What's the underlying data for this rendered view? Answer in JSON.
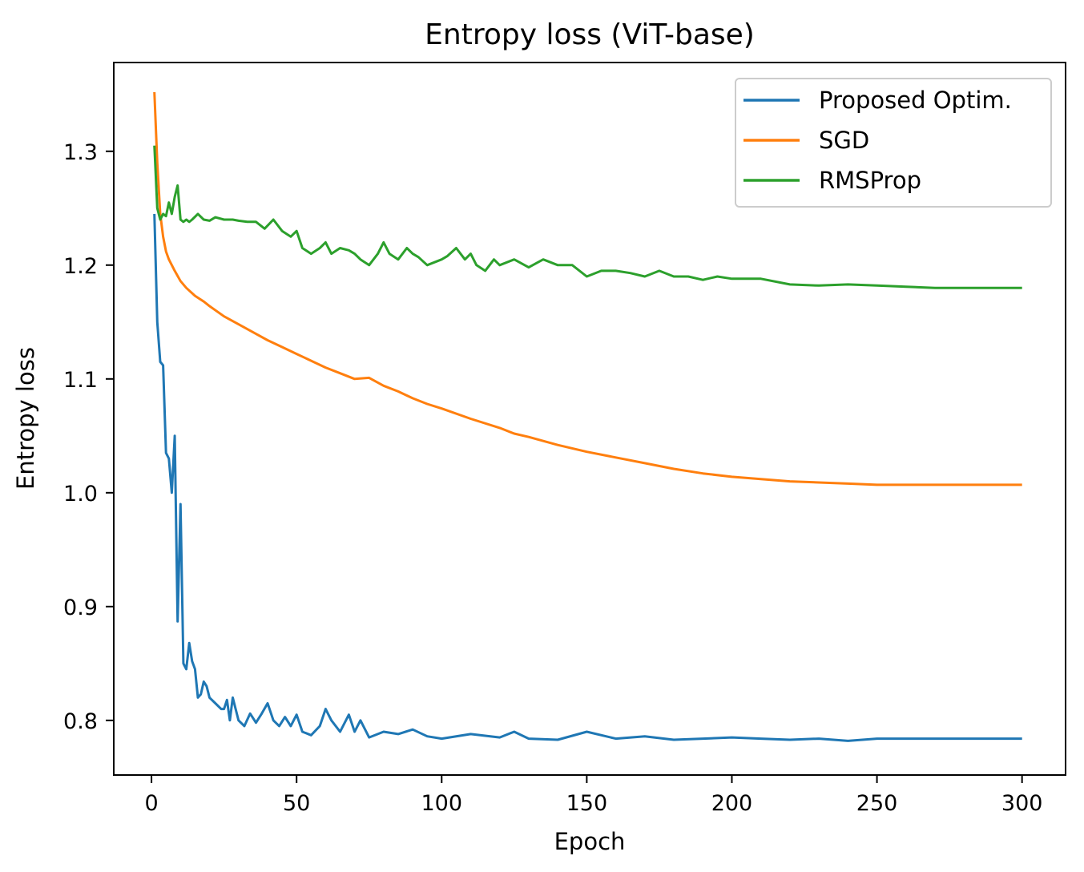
{
  "chart_data": {
    "type": "line",
    "title": "Entropy loss (ViT-base)",
    "xlabel": "Epoch",
    "ylabel": "Entropy loss",
    "xlim": [
      -13,
      315
    ],
    "ylim": [
      0.752,
      1.378
    ],
    "x_ticks": [
      0,
      50,
      100,
      150,
      200,
      250,
      300
    ],
    "y_ticks": [
      0.8,
      0.9,
      1.0,
      1.1,
      1.2,
      1.3
    ],
    "x_tick_labels": [
      "0",
      "50",
      "100",
      "150",
      "200",
      "250",
      "300"
    ],
    "y_tick_labels": [
      "0.8",
      "0.9",
      "1.0",
      "1.1",
      "1.2",
      "1.3"
    ],
    "grid": false,
    "legend_position": "top-right",
    "series": [
      {
        "name": "Proposed Optim.",
        "color": "#1f77b4",
        "x": [
          1,
          2,
          3,
          4,
          5,
          6,
          7,
          8,
          9,
          10,
          11,
          12,
          13,
          14,
          15,
          16,
          17,
          18,
          19,
          20,
          22,
          24,
          25,
          26,
          27,
          28,
          30,
          32,
          34,
          36,
          38,
          40,
          42,
          44,
          46,
          48,
          50,
          52,
          55,
          58,
          60,
          62,
          65,
          68,
          70,
          72,
          75,
          80,
          85,
          90,
          95,
          100,
          110,
          120,
          125,
          130,
          140,
          150,
          160,
          170,
          180,
          190,
          200,
          210,
          220,
          230,
          240,
          250,
          260,
          270,
          280,
          290,
          300
        ],
        "values": [
          1.245,
          1.15,
          1.115,
          1.112,
          1.035,
          1.03,
          1.0,
          1.05,
          0.887,
          0.99,
          0.85,
          0.845,
          0.868,
          0.852,
          0.845,
          0.82,
          0.823,
          0.834,
          0.83,
          0.82,
          0.815,
          0.81,
          0.81,
          0.818,
          0.8,
          0.82,
          0.8,
          0.795,
          0.806,
          0.798,
          0.806,
          0.815,
          0.8,
          0.795,
          0.803,
          0.795,
          0.805,
          0.79,
          0.787,
          0.795,
          0.81,
          0.8,
          0.79,
          0.805,
          0.79,
          0.8,
          0.785,
          0.79,
          0.788,
          0.792,
          0.786,
          0.784,
          0.788,
          0.785,
          0.79,
          0.784,
          0.783,
          0.79,
          0.784,
          0.786,
          0.783,
          0.784,
          0.785,
          0.784,
          0.783,
          0.784,
          0.782,
          0.784,
          0.784,
          0.784,
          0.784,
          0.784,
          0.784
        ]
      },
      {
        "name": "SGD",
        "color": "#ff7f0e",
        "x": [
          1,
          2,
          3,
          4,
          5,
          6,
          8,
          10,
          12,
          15,
          18,
          20,
          25,
          30,
          35,
          40,
          45,
          50,
          55,
          60,
          65,
          70,
          75,
          80,
          85,
          90,
          95,
          100,
          110,
          120,
          125,
          130,
          140,
          150,
          160,
          170,
          180,
          190,
          200,
          210,
          220,
          230,
          240,
          250,
          260,
          270,
          280,
          290,
          300
        ],
        "values": [
          1.352,
          1.29,
          1.245,
          1.225,
          1.212,
          1.205,
          1.195,
          1.186,
          1.18,
          1.173,
          1.168,
          1.164,
          1.155,
          1.148,
          1.141,
          1.134,
          1.128,
          1.122,
          1.116,
          1.11,
          1.105,
          1.1,
          1.101,
          1.094,
          1.089,
          1.083,
          1.078,
          1.074,
          1.065,
          1.057,
          1.052,
          1.049,
          1.042,
          1.036,
          1.031,
          1.026,
          1.021,
          1.017,
          1.014,
          1.012,
          1.01,
          1.009,
          1.008,
          1.007,
          1.007,
          1.007,
          1.007,
          1.007,
          1.007
        ]
      },
      {
        "name": "RMSProp",
        "color": "#2ca02c",
        "x": [
          1,
          2,
          3,
          4,
          5,
          6,
          7,
          8,
          9,
          10,
          11,
          12,
          13,
          14,
          16,
          18,
          20,
          22,
          25,
          28,
          30,
          33,
          36,
          39,
          42,
          45,
          48,
          50,
          52,
          55,
          58,
          60,
          62,
          65,
          68,
          70,
          72,
          75,
          78,
          80,
          82,
          85,
          88,
          90,
          92,
          95,
          100,
          102,
          105,
          108,
          110,
          112,
          115,
          118,
          120,
          125,
          130,
          135,
          140,
          145,
          150,
          155,
          160,
          165,
          170,
          175,
          180,
          185,
          190,
          195,
          200,
          210,
          220,
          230,
          240,
          250,
          260,
          270,
          280,
          290,
          300
        ],
        "values": [
          1.305,
          1.25,
          1.24,
          1.245,
          1.243,
          1.255,
          1.245,
          1.26,
          1.27,
          1.24,
          1.238,
          1.24,
          1.238,
          1.24,
          1.245,
          1.24,
          1.239,
          1.242,
          1.24,
          1.24,
          1.239,
          1.238,
          1.238,
          1.232,
          1.24,
          1.23,
          1.225,
          1.23,
          1.215,
          1.21,
          1.215,
          1.22,
          1.21,
          1.215,
          1.213,
          1.21,
          1.205,
          1.2,
          1.21,
          1.22,
          1.21,
          1.205,
          1.215,
          1.21,
          1.207,
          1.2,
          1.205,
          1.208,
          1.215,
          1.205,
          1.21,
          1.2,
          1.195,
          1.205,
          1.2,
          1.205,
          1.198,
          1.205,
          1.2,
          1.2,
          1.19,
          1.195,
          1.195,
          1.193,
          1.19,
          1.195,
          1.19,
          1.19,
          1.187,
          1.19,
          1.188,
          1.188,
          1.183,
          1.182,
          1.183,
          1.182,
          1.181,
          1.18,
          1.18,
          1.18,
          1.18
        ]
      }
    ]
  }
}
